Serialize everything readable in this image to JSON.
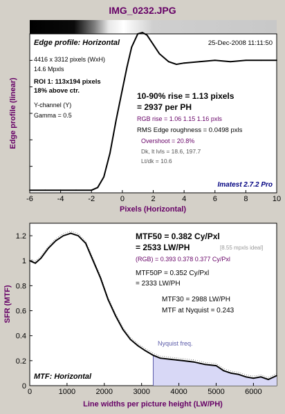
{
  "window_title": "IMG_0232.JPG",
  "colors": {
    "purple": "#660066",
    "blue_text": "#000080",
    "nyquist_fill": "#d8d8f6",
    "nyquist_line": "#5a5aa8",
    "plot_bg": "#ffffff",
    "panel_bg": "#d4d0c8"
  },
  "top": {
    "panel_label": "Edge profile: Horizontal",
    "date": "25-Dec-2008 11:11:50",
    "info_lines": [
      "4416 x 3312 pixels (WxH)",
      "14.6 Mpxls"
    ],
    "roi_lines": [
      "ROI 1:  113x194 pixels",
      "18% above ctr."
    ],
    "channel_lines": [
      "Y-channel  (Y)",
      "Gamma = 0.5"
    ],
    "rise_lines": [
      "10-90% rise = 1.13 pixels",
      "= 2937 per PH"
    ],
    "rgb_rise": "RGB rise = 1.06  1.15  1.16 pxls",
    "roughness": "RMS Edge roughness = 0.0498 pxls",
    "overshoot": "Overshoot = 20.8%",
    "levels": "Dk, lt lvls = 18.6, 197.7",
    "ltdk": "Lt/dk = 10.6",
    "brand": "Imatest 2.7.2 Pro",
    "ylabel": "Edge profile (linear)",
    "xlabel": "Pixels (Horizontal)"
  },
  "bottom": {
    "panel_label": "MTF: Horizontal",
    "mtf50_lines": [
      "MTF50 = 0.382 Cy/Pxl",
      "= 2533 LW/PH"
    ],
    "ideal_note": "[8.55 mpxls ideal]",
    "rgb_mtf": "(RGB) = 0.393  0.378  0.377 Cy/Pxl",
    "mtf50p_lines": [
      "MTF50P = 0.352 Cy/Pxl",
      "= 2333 LW/PH"
    ],
    "mtf30": "MTF30 = 2988 LW/PH",
    "mtf_nyquist": "MTF at Nyquist = 0.243",
    "nyquist_label": "Nyquist freq.",
    "ylabel": "SFR (MTF)",
    "xlabel": "Line widths per picture height (LW/PH)"
  },
  "chart_data": [
    {
      "type": "line",
      "title": "Edge profile: Horizontal",
      "xlabel": "Pixels (Horizontal)",
      "ylabel": "Edge profile (linear)",
      "xlim": [
        -6,
        10
      ],
      "xticks": [
        "-6",
        "-4",
        "-2",
        "0",
        "2",
        "4",
        "6",
        "8",
        "10"
      ],
      "ylim": [
        0,
        1.2
      ],
      "grid": false,
      "series": [
        {
          "x": [
            -6,
            -5,
            -4,
            -3,
            -2,
            -1.6,
            -1.2,
            -0.8,
            -0.4,
            0,
            0.3,
            0.6,
            1.0,
            1.3,
            1.6,
            2.0,
            2.4,
            3.0,
            3.5,
            4.0,
            5.0,
            6.0,
            7.0,
            8.0,
            9.0,
            10.0
          ],
          "y": [
            0.02,
            0.02,
            0.02,
            0.02,
            0.02,
            0.04,
            0.12,
            0.3,
            0.55,
            0.78,
            0.95,
            1.1,
            1.2,
            1.21,
            1.19,
            1.12,
            1.05,
            0.99,
            0.97,
            0.98,
            0.99,
            1.0,
            0.99,
            1.0,
            1.0,
            1.0
          ]
        }
      ]
    },
    {
      "type": "line",
      "title": "MTF: Horizontal",
      "xlabel": "Line widths per picture height (LW/PH)",
      "ylabel": "SFR (MTF)",
      "xlim": [
        0,
        6624
      ],
      "xticks": [
        "0",
        "1000",
        "2000",
        "3000",
        "4000",
        "5000",
        "6000"
      ],
      "ylim": [
        0,
        1.3
      ],
      "yticks": [
        "0",
        "0.2",
        "0.4",
        "0.6",
        "0.8",
        "1",
        "1.2"
      ],
      "nyquist_x": 3312,
      "grid": false,
      "series": [
        {
          "x": [
            0,
            150,
            300,
            500,
            700,
            900,
            1100,
            1200,
            1300,
            1500,
            1700,
            1900,
            2100,
            2300,
            2500,
            2700,
            2900,
            3100,
            3312,
            3500,
            3800,
            4100,
            4400,
            4700,
            5000,
            5200,
            5400,
            5600,
            5800,
            6000,
            6200,
            6400,
            6624
          ],
          "y": [
            1.0,
            0.98,
            1.02,
            1.1,
            1.16,
            1.2,
            1.22,
            1.21,
            1.2,
            1.14,
            1.0,
            0.86,
            0.69,
            0.56,
            0.45,
            0.37,
            0.32,
            0.28,
            0.243,
            0.22,
            0.21,
            0.2,
            0.19,
            0.17,
            0.16,
            0.12,
            0.1,
            0.09,
            0.07,
            0.06,
            0.07,
            0.05,
            0.08
          ]
        }
      ]
    }
  ]
}
